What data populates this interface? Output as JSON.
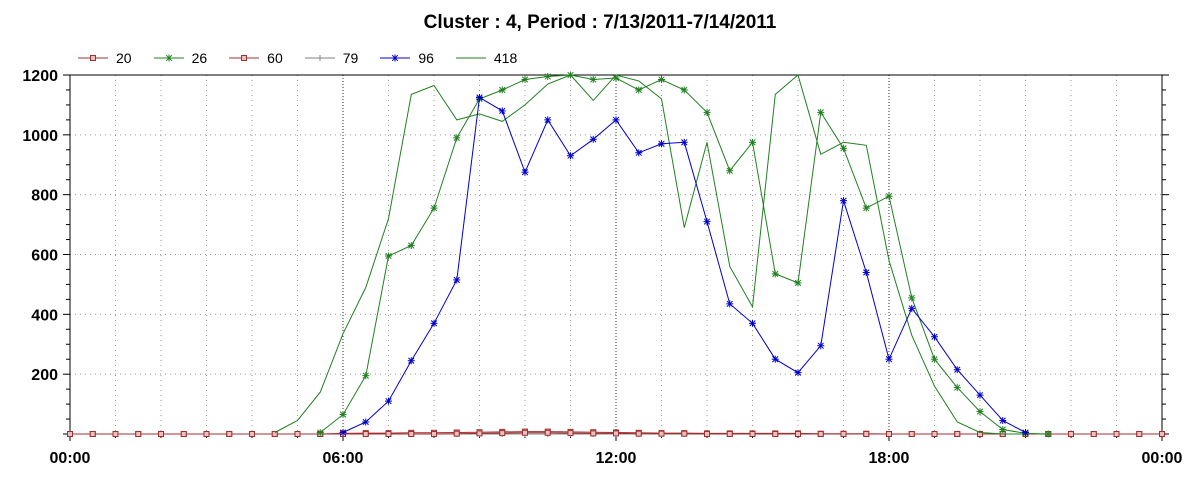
{
  "chart_data": {
    "type": "line",
    "title": "Cluster : 4, Period : 7/13/2011-7/14/2011",
    "xlabel": "",
    "ylabel": "",
    "x_range_hours": [
      0,
      24
    ],
    "ylim": [
      0,
      1200
    ],
    "x_ticks": [
      {
        "hour": 0,
        "label": "00:00"
      },
      {
        "hour": 6,
        "label": "06:00"
      },
      {
        "hour": 12,
        "label": "12:00"
      },
      {
        "hour": 18,
        "label": "18:00"
      },
      {
        "hour": 24,
        "label": "00:00"
      }
    ],
    "y_ticks": [
      {
        "value": 200,
        "label": "200"
      },
      {
        "value": 400,
        "label": "400"
      },
      {
        "value": 600,
        "label": "600"
      },
      {
        "value": 800,
        "label": "800"
      },
      {
        "value": 1000,
        "label": "1000"
      },
      {
        "value": 1200,
        "label": "1200"
      }
    ],
    "grid": "dotted vertical lines every hour, dotted horizontal at each y tick",
    "legend_position": "top-left",
    "series": [
      {
        "name": "20",
        "color": "#a03030",
        "marker": "square",
        "x": [
          0,
          0.5,
          1,
          1.5,
          2,
          2.5,
          3,
          3.5,
          4,
          4.5,
          5,
          5.5,
          6,
          6.5,
          7,
          7.5,
          8,
          8.5,
          9,
          9.5,
          10,
          10.5,
          11,
          11.5,
          12,
          12.5,
          13,
          13.5,
          14,
          14.5,
          15,
          15.5,
          16,
          16.5,
          17,
          17.5,
          18,
          18.5,
          19,
          19.5,
          20,
          20.5,
          21,
          21.5,
          22,
          22.5,
          23,
          23.5,
          24
        ],
        "y": [
          0,
          0,
          0,
          0,
          0,
          0,
          0,
          0,
          0,
          0,
          0,
          0,
          2,
          3,
          3,
          4,
          4,
          5,
          6,
          7,
          8,
          8,
          7,
          6,
          5,
          4,
          3,
          3,
          2,
          2,
          2,
          2,
          2,
          1,
          1,
          1,
          0,
          0,
          0,
          0,
          0,
          0,
          0,
          0,
          0,
          0,
          0,
          0,
          0
        ]
      },
      {
        "name": "26",
        "color": "#208020",
        "marker": "star",
        "x": [
          5.5,
          6,
          6.5,
          7,
          7.5,
          8,
          8.5,
          9,
          9.5,
          10,
          10.5,
          11,
          11.5,
          12,
          12.5,
          13,
          13.5,
          14,
          14.5,
          15,
          15.5,
          16,
          16.5,
          17,
          17.5,
          18,
          18.5,
          19,
          19.5,
          20,
          20.5,
          21,
          21.5
        ],
        "y": [
          5,
          65,
          195,
          595,
          630,
          755,
          990,
          1120,
          1150,
          1185,
          1195,
          1200,
          1185,
          1190,
          1150,
          1185,
          1150,
          1075,
          880,
          975,
          535,
          505,
          1075,
          955,
          755,
          795,
          455,
          250,
          155,
          75,
          15,
          2,
          0
        ]
      },
      {
        "name": "60",
        "color": "#a03030",
        "marker": "square",
        "x": [
          0,
          0.5,
          1,
          1.5,
          2,
          2.5,
          3,
          3.5,
          4,
          4.5,
          5,
          5.5,
          6,
          6.5,
          7,
          7.5,
          8,
          8.5,
          9,
          9.5,
          10,
          10.5,
          11,
          11.5,
          12,
          12.5,
          13,
          13.5,
          14,
          14.5,
          15,
          15.5,
          16,
          16.5,
          17,
          17.5,
          18,
          18.5,
          19,
          19.5,
          20,
          20.5,
          21,
          21.5,
          22,
          22.5,
          23,
          23.5,
          24
        ],
        "y": [
          0,
          0,
          0,
          0,
          0,
          0,
          0,
          0,
          0,
          0,
          0,
          0,
          0,
          0,
          0,
          0,
          0,
          1,
          2,
          3,
          4,
          4,
          3,
          2,
          2,
          1,
          1,
          1,
          0,
          0,
          0,
          0,
          0,
          0,
          0,
          0,
          0,
          0,
          0,
          0,
          0,
          0,
          0,
          0,
          0,
          0,
          0,
          0,
          0
        ]
      },
      {
        "name": "79",
        "color": "#808080",
        "marker": "plus",
        "x": [
          0,
          0.5,
          1,
          1.5,
          2,
          2.5,
          3,
          3.5,
          4,
          4.5,
          5,
          5.5,
          6,
          6.5,
          7,
          7.5,
          8,
          8.5,
          9,
          9.5,
          10,
          10.5,
          11,
          11.5,
          12,
          12.5,
          13,
          13.5,
          14,
          14.5,
          15,
          15.5,
          16,
          16.5,
          17,
          17.5,
          18,
          18.5,
          19,
          19.5,
          20,
          20.5,
          21,
          21.5,
          22,
          22.5,
          23,
          23.5,
          24
        ],
        "y": [
          0,
          0,
          0,
          0,
          0,
          0,
          0,
          0,
          0,
          0,
          0,
          0,
          0,
          0,
          0,
          0,
          0,
          0,
          0,
          0,
          0,
          0,
          0,
          0,
          0,
          0,
          0,
          0,
          0,
          0,
          0,
          0,
          0,
          0,
          0,
          0,
          0,
          0,
          0,
          0,
          0,
          0,
          0,
          0,
          0,
          0,
          0,
          0,
          0
        ]
      },
      {
        "name": "96",
        "color": "#0000cc",
        "marker": "star",
        "x": [
          6,
          6.5,
          7,
          7.5,
          8,
          8.5,
          9,
          9.5,
          10,
          10.5,
          11,
          11.5,
          12,
          12.5,
          13,
          13.5,
          14,
          14.5,
          15,
          15.5,
          16,
          16.5,
          17,
          17.5,
          18,
          18.5,
          19,
          19.5,
          20,
          20.5,
          21
        ],
        "y": [
          5,
          40,
          110,
          245,
          370,
          515,
          1125,
          1080,
          875,
          1050,
          930,
          985,
          1050,
          940,
          970,
          975,
          710,
          435,
          370,
          250,
          205,
          295,
          780,
          540,
          250,
          420,
          325,
          215,
          130,
          45,
          5
        ]
      },
      {
        "name": "418",
        "color": "#208020",
        "marker": "none",
        "x": [
          4.5,
          5,
          5.5,
          6,
          6.5,
          7,
          7.5,
          8,
          8.5,
          9,
          9.5,
          10,
          10.5,
          11,
          11.5,
          12,
          12.5,
          13,
          13.5,
          14,
          14.5,
          15,
          15.5,
          16,
          16.5,
          17,
          17.5,
          18,
          18.5,
          19,
          19.5,
          20,
          20.5,
          21
        ],
        "y": [
          5,
          45,
          140,
          335,
          490,
          720,
          1135,
          1165,
          1050,
          1070,
          1045,
          1100,
          1170,
          1200,
          1115,
          1200,
          1180,
          1120,
          690,
          975,
          560,
          425,
          1135,
          1200,
          935,
          975,
          965,
          580,
          330,
          160,
          40,
          5,
          0,
          0
        ]
      }
    ]
  }
}
